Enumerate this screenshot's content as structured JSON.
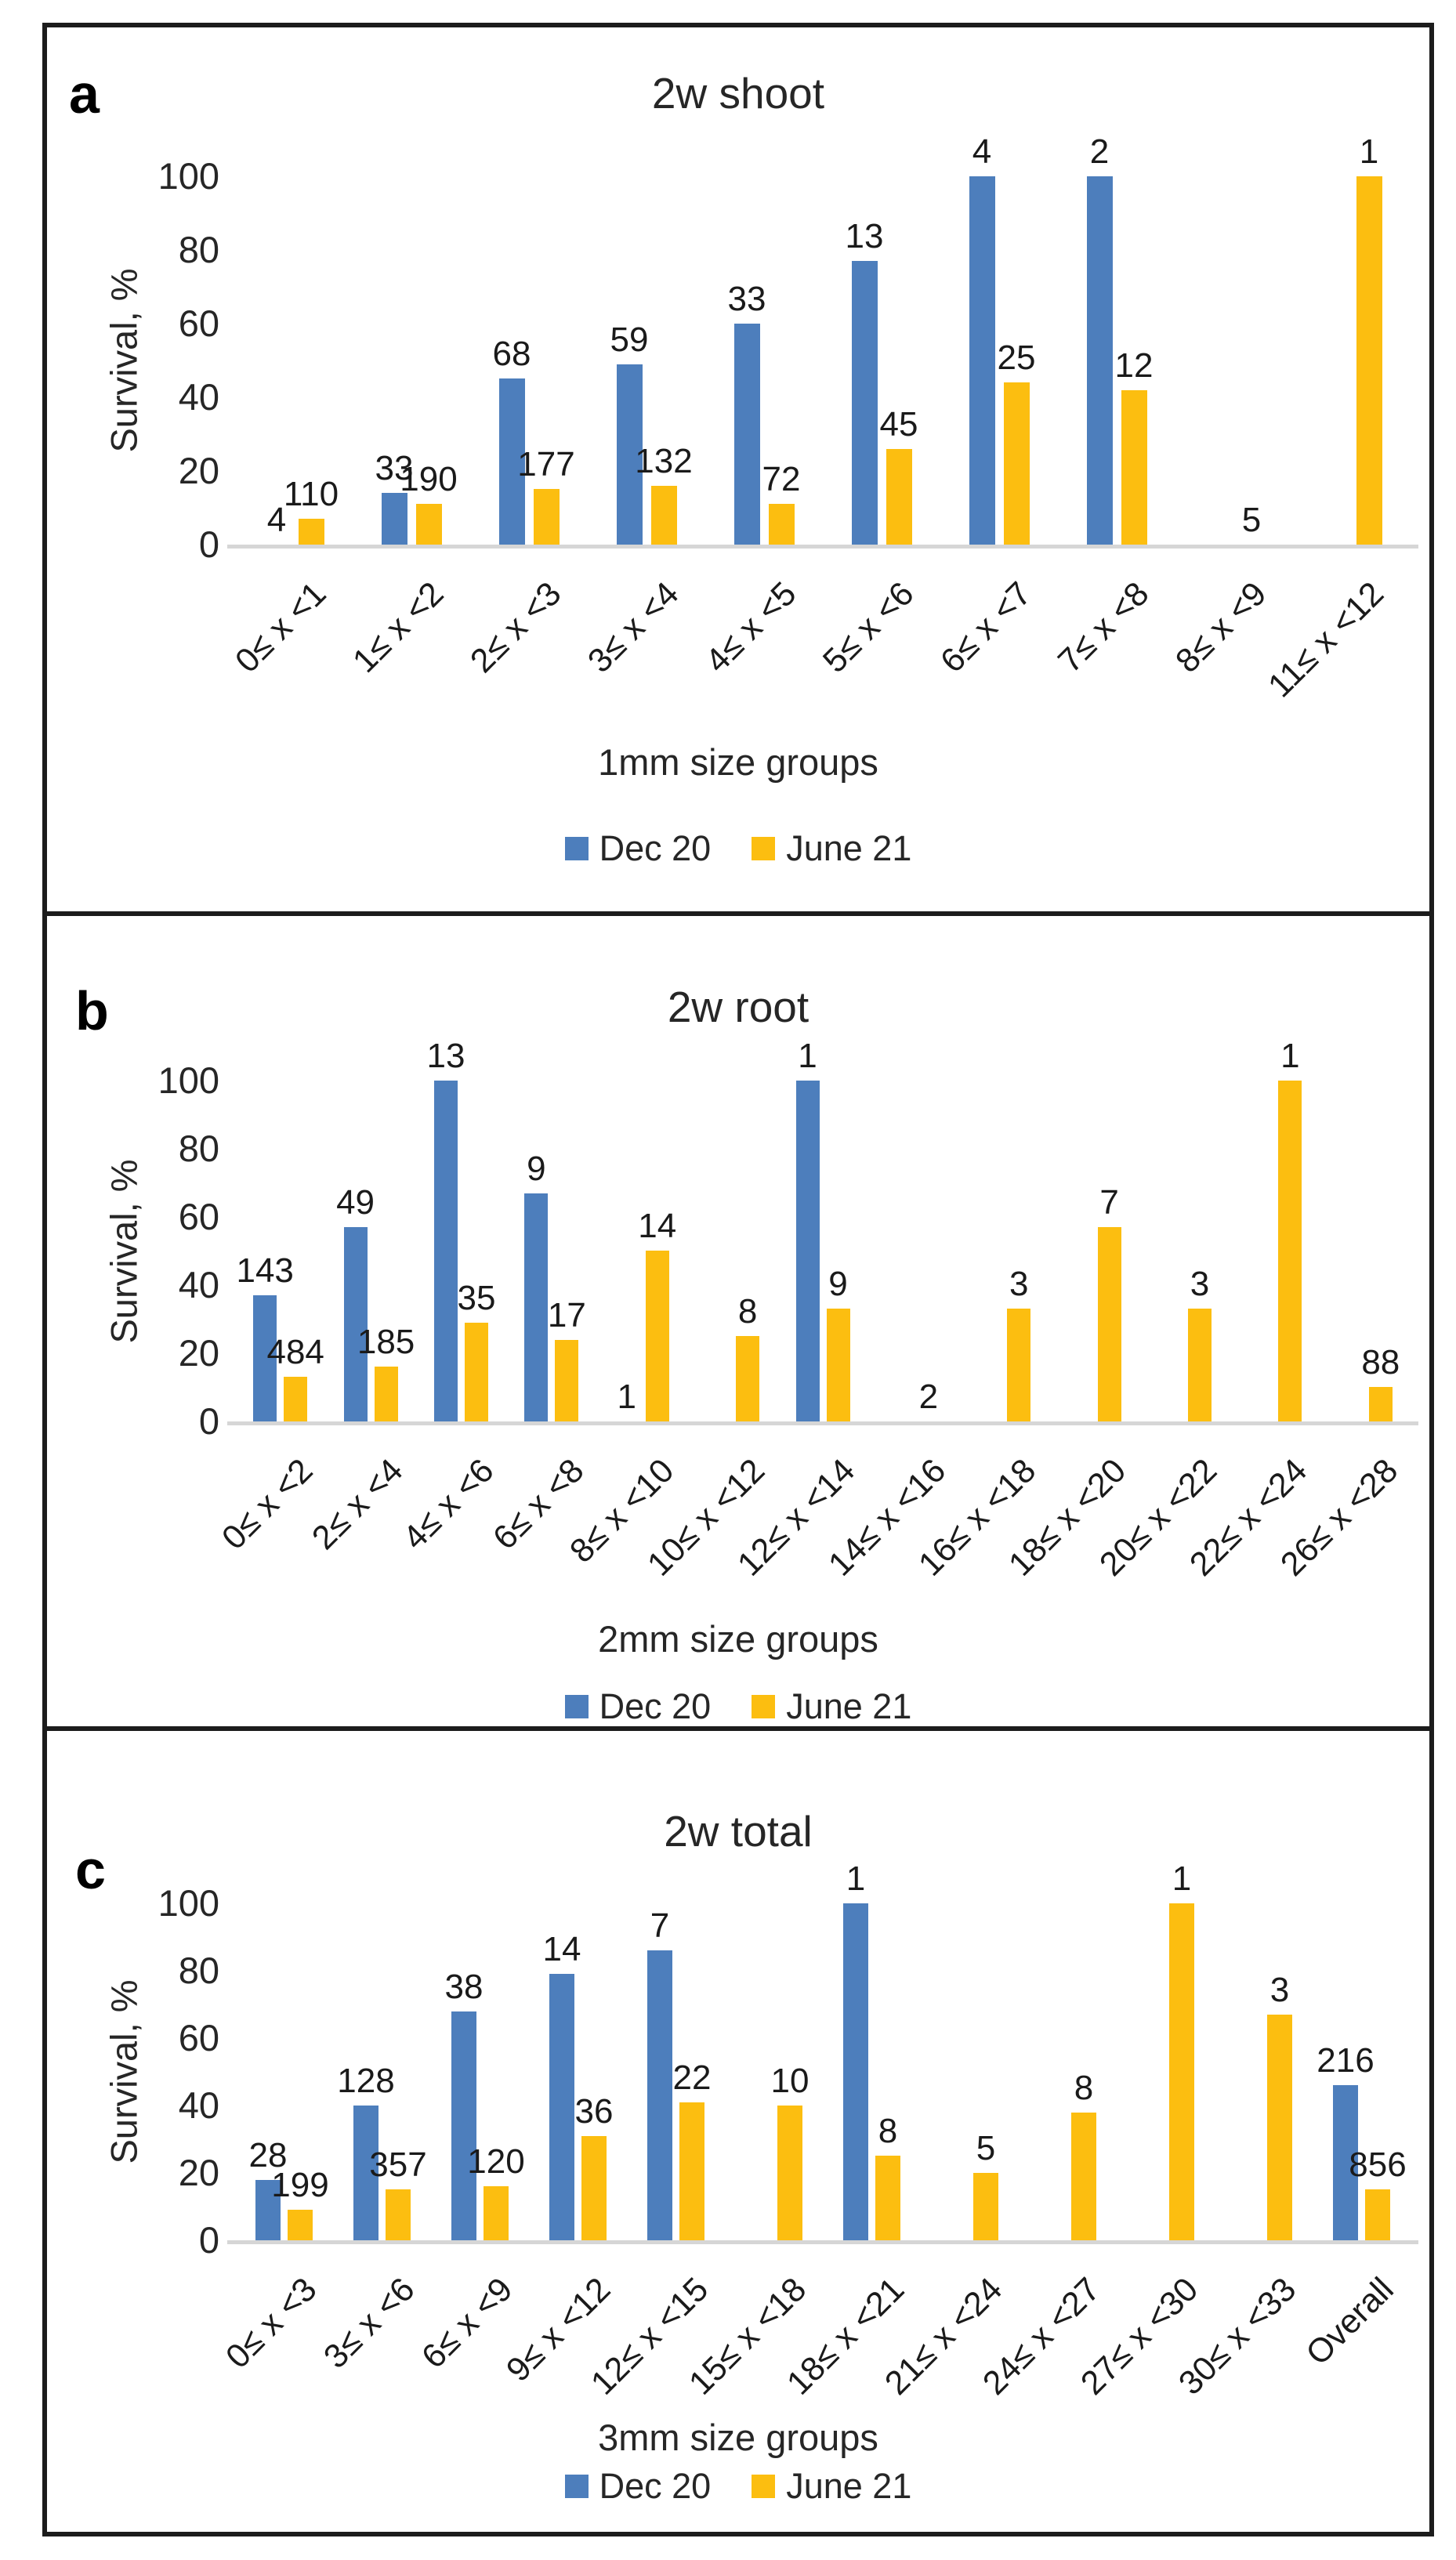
{
  "figure": {
    "background": "#ffffff",
    "border_color": "#1c1c1c"
  },
  "colors": {
    "dec20": "#4d7ebc",
    "june21": "#fcbe10",
    "axis_line": "#d6d6d6",
    "text": "#262626"
  },
  "legend": {
    "items": [
      {
        "label": "Dec 20",
        "series": "dec20"
      },
      {
        "label": "June 21",
        "series": "june21"
      }
    ]
  },
  "chart_data": [
    {
      "type": "bar",
      "panel_letter": "a",
      "title": "2w shoot",
      "ylabel": "Survival, %",
      "xlabel": "1mm size groups",
      "ylim": [
        0,
        100
      ],
      "yticks": [
        0,
        20,
        40,
        60,
        80,
        100
      ],
      "grid": false,
      "legend_position": "bottom",
      "categories": [
        "0≤ x <1",
        "1≤ x <2",
        "2≤ x <3",
        "3≤ x <4",
        "4≤ x <5",
        "5≤ x <6",
        "6≤ x <7",
        "7≤ x <8",
        "8≤ x <9",
        "11≤ x <12"
      ],
      "series": [
        {
          "name": "Dec 20",
          "color_key": "dec20",
          "values": [
            0,
            14,
            45,
            49,
            60,
            77,
            100,
            100,
            null,
            null
          ],
          "labels": [
            "4",
            "33",
            "68",
            "59",
            "33",
            "13",
            "4",
            "2",
            null,
            null
          ]
        },
        {
          "name": "June 21",
          "color_key": "june21",
          "values": [
            7,
            11,
            15,
            16,
            11,
            26,
            44,
            42,
            0,
            100
          ],
          "labels": [
            "110",
            "190",
            "177",
            "132",
            "72",
            "45",
            "25",
            "12",
            "5",
            "1"
          ]
        }
      ]
    },
    {
      "type": "bar",
      "panel_letter": "b",
      "title": "2w root",
      "ylabel": "Survival, %",
      "xlabel": "2mm size groups",
      "ylim": [
        0,
        100
      ],
      "yticks": [
        0,
        20,
        40,
        60,
        80,
        100
      ],
      "grid": false,
      "legend_position": "bottom",
      "categories": [
        "0≤ x <2",
        "2≤ x <4",
        "4≤ x <6",
        "6≤ x <8",
        "8≤ x <10",
        "10≤ x <12",
        "12≤ x <14",
        "14≤ x <16",
        "16≤ x <18",
        "18≤ x <20",
        "20≤ x <22",
        "22≤ x <24",
        "26≤ x <28"
      ],
      "series": [
        {
          "name": "Dec 20",
          "color_key": "dec20",
          "values": [
            37,
            57,
            100,
            67,
            0,
            null,
            100,
            null,
            null,
            null,
            null,
            null,
            null
          ],
          "labels": [
            "143",
            "49",
            "13",
            "9",
            "1",
            null,
            "1",
            null,
            null,
            null,
            null,
            null,
            null
          ]
        },
        {
          "name": "June 21",
          "color_key": "june21",
          "values": [
            13,
            16,
            29,
            24,
            50,
            25,
            33,
            0,
            33,
            57,
            33,
            100,
            10
          ],
          "labels": [
            "484",
            "185",
            "35",
            "17",
            "14",
            "8",
            "9",
            "2",
            "3",
            "7",
            "3",
            "1",
            "88"
          ]
        }
      ]
    },
    {
      "type": "bar",
      "panel_letter": "c",
      "title": "2w total",
      "ylabel": "Survival, %",
      "xlabel": "3mm size groups",
      "ylim": [
        0,
        100
      ],
      "yticks": [
        0,
        20,
        40,
        60,
        80,
        100
      ],
      "grid": false,
      "legend_position": "bottom",
      "categories": [
        "0≤ x <3",
        "3≤ x <6",
        "6≤ x <9",
        "9≤ x <12",
        "12≤ x <15",
        "15≤ x <18",
        "18≤ x <21",
        "21≤ x <24",
        "24≤ x <27",
        "27≤ x <30",
        "30≤ x <33",
        "Overall"
      ],
      "series": [
        {
          "name": "Dec 20",
          "color_key": "dec20",
          "values": [
            18,
            40,
            68,
            79,
            86,
            null,
            100,
            null,
            null,
            null,
            null,
            46
          ],
          "labels": [
            "28",
            "128",
            "38",
            "14",
            "7",
            null,
            "1",
            null,
            null,
            null,
            null,
            "216"
          ]
        },
        {
          "name": "June 21",
          "color_key": "june21",
          "values": [
            9,
            15,
            16,
            31,
            41,
            40,
            25,
            20,
            38,
            100,
            67,
            15
          ],
          "labels": [
            "199",
            "357",
            "120",
            "36",
            "22",
            "10",
            "8",
            "5",
            "8",
            "1",
            "3",
            "856"
          ]
        }
      ]
    }
  ]
}
